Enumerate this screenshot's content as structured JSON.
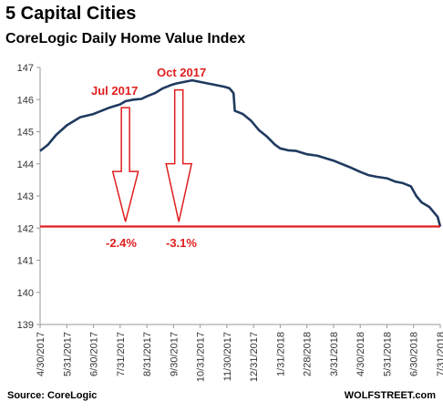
{
  "header": {
    "title": "5 Capital Cities",
    "subtitle": "CoreLogic Daily Home Value Index"
  },
  "footer": {
    "source": "Source: CoreLogic",
    "brand": "WOLFSTREET.com"
  },
  "colors": {
    "line": "#1f3a5f",
    "reference": "#e01e1e",
    "annotation": "#e01e1e",
    "axis": "#999999"
  },
  "annotations": {
    "peak1_label": "Jul 2017",
    "peak2_label": "Oct 2017",
    "drop1_label": "-2.4%",
    "drop2_label": "-3.1%"
  },
  "chart_data": {
    "type": "line",
    "title": "5 Capital Cities",
    "subtitle": "CoreLogic Daily Home Value Index",
    "xlabel": "",
    "ylabel": "",
    "ylim": [
      139,
      147
    ],
    "yticks": [
      139,
      140,
      141,
      142,
      143,
      144,
      145,
      146,
      147
    ],
    "xticks": [
      "4/30/2017",
      "5/31/2017",
      "6/30/2017",
      "7/31/2017",
      "8/31/2017",
      "9/30/2017",
      "10/31/2017",
      "11/30/2017",
      "12/31/2017",
      "1/31/2018",
      "2/28/2018",
      "3/31/2018",
      "4/30/2018",
      "5/31/2018",
      "6/30/2018",
      "7/31/2018"
    ],
    "grid": false,
    "reference_line": 142.05,
    "series": [
      {
        "x": [
          0,
          0.3,
          0.6,
          1.0,
          1.5,
          2.0,
          2.3,
          2.6,
          3.0,
          3.2,
          3.5,
          3.8,
          4.0,
          4.3,
          4.6,
          4.9,
          5.1,
          5.4,
          5.7,
          6.0,
          6.3,
          6.6,
          6.9,
          7.1,
          7.25,
          7.3,
          7.6,
          7.9,
          8.2,
          8.5,
          8.8,
          9.0,
          9.3,
          9.6,
          10.0,
          10.4,
          10.8,
          11.0,
          11.3,
          11.6,
          12.0,
          12.3,
          12.6,
          13.0,
          13.3,
          13.6,
          13.9,
          14.1,
          14.3,
          14.6,
          14.9,
          15.0
        ],
        "values": [
          144.4,
          144.6,
          144.9,
          145.2,
          145.45,
          145.55,
          145.65,
          145.75,
          145.85,
          145.95,
          146.0,
          146.02,
          146.1,
          146.2,
          146.35,
          146.45,
          146.5,
          146.55,
          146.6,
          146.55,
          146.5,
          146.45,
          146.4,
          146.35,
          146.2,
          145.65,
          145.55,
          145.35,
          145.05,
          144.85,
          144.6,
          144.48,
          144.42,
          144.4,
          144.3,
          144.25,
          144.15,
          144.1,
          144.0,
          143.9,
          143.75,
          143.65,
          143.6,
          143.55,
          143.45,
          143.4,
          143.3,
          143.0,
          142.8,
          142.65,
          142.35,
          142.05
        ]
      }
    ]
  }
}
